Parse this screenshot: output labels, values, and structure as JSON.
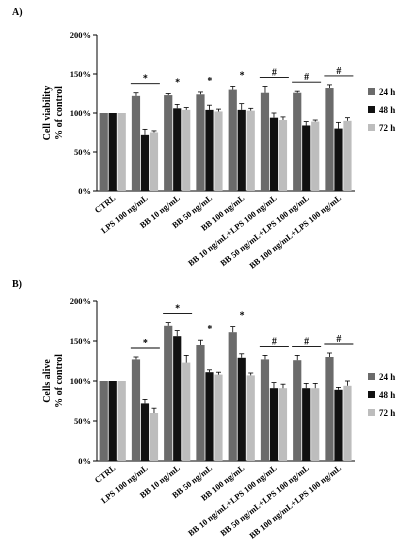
{
  "chart_data": [
    {
      "type": "bar",
      "panel_label": "A)",
      "ylabel_line1": "Cell viability",
      "ylabel_line2": "% of control",
      "ylim": [
        0,
        200
      ],
      "yticks": [
        "0%",
        "50%",
        "100%",
        "150%",
        "200%"
      ],
      "grid": false,
      "legend_position": "right",
      "categories": [
        "CTRL",
        "LPS 100 ng/mL",
        "BB 10 ng/mL",
        "BB 50 ng/mL",
        "BB 100 ng/mL",
        "BB 10 ng/mL+LPS 100 ng/mL",
        "BB 50 ng/mL+LPS 100 ng/mL",
        "BB 100 ng/mL+LPS 100 ng/mL"
      ],
      "series": [
        {
          "name": "24 h",
          "color": "#6b6b6b",
          "values": [
            100,
            122,
            123,
            124,
            130,
            126,
            126,
            132
          ],
          "errors": [
            0,
            4,
            2,
            3,
            4,
            8,
            2,
            4
          ]
        },
        {
          "name": "48 h",
          "color": "#111111",
          "values": [
            100,
            72,
            106,
            104,
            104,
            94,
            84,
            80
          ],
          "errors": [
            0,
            7,
            5,
            6,
            8,
            6,
            5,
            8
          ]
        },
        {
          "name": "72 h",
          "color": "#bdbdbd",
          "values": [
            100,
            75,
            104,
            102,
            103,
            91,
            89,
            90
          ],
          "errors": [
            0,
            2,
            3,
            3,
            3,
            4,
            2,
            4
          ]
        }
      ],
      "annotations": [
        {
          "symbol": "*",
          "category": 1,
          "bracket": true
        },
        {
          "symbol": "*",
          "category": 2,
          "bracket": false
        },
        {
          "symbol": "*",
          "category": 3,
          "bracket": false
        },
        {
          "symbol": "*",
          "category": 4,
          "bracket": false
        },
        {
          "symbol": "#",
          "category": 5,
          "bracket": true
        },
        {
          "symbol": "#",
          "category": 6,
          "bracket": true
        },
        {
          "symbol": "#",
          "category": 7,
          "bracket": true
        }
      ]
    },
    {
      "type": "bar",
      "panel_label": "B)",
      "ylabel_line1": "Cells alive",
      "ylabel_line2": "% of control",
      "ylim": [
        0,
        200
      ],
      "yticks": [
        "0%",
        "50%",
        "100%",
        "150%",
        "200%"
      ],
      "grid": false,
      "legend_position": "right",
      "categories": [
        "CTRL",
        "LPS 100 ng/mL",
        "BB 10 ng/mL",
        "BB 50 ng/mL",
        "BB 100 ng/mL",
        "BB 10 ng/mL+LPS 100 ng/mL",
        "BB 50 ng/mL+LPS 100 ng/mL",
        "BB 100 ng/mL+LPS 100 ng/mL"
      ],
      "series": [
        {
          "name": "24 h",
          "color": "#6b6b6b",
          "values": [
            100,
            127,
            169,
            145,
            161,
            127,
            126,
            130
          ],
          "errors": [
            0,
            3,
            4,
            6,
            7,
            5,
            6,
            5
          ]
        },
        {
          "name": "48 h",
          "color": "#111111",
          "values": [
            100,
            72,
            156,
            111,
            129,
            91,
            91,
            89
          ],
          "errors": [
            0,
            5,
            7,
            3,
            5,
            7,
            6,
            3
          ]
        },
        {
          "name": "72 h",
          "color": "#bdbdbd",
          "values": [
            100,
            60,
            123,
            108,
            107,
            91,
            91,
            94
          ],
          "errors": [
            0,
            6,
            9,
            3,
            3,
            5,
            6,
            6
          ]
        }
      ],
      "annotations": [
        {
          "symbol": "*",
          "category": 1,
          "bracket": true
        },
        {
          "symbol": "*",
          "category": 2,
          "bracket": true
        },
        {
          "symbol": "*",
          "category": 3,
          "bracket": false
        },
        {
          "symbol": "*",
          "category": 4,
          "bracket": false
        },
        {
          "symbol": "#",
          "category": 5,
          "bracket": true
        },
        {
          "symbol": "#",
          "category": 6,
          "bracket": true
        },
        {
          "symbol": "#",
          "category": 7,
          "bracket": true
        }
      ]
    }
  ]
}
